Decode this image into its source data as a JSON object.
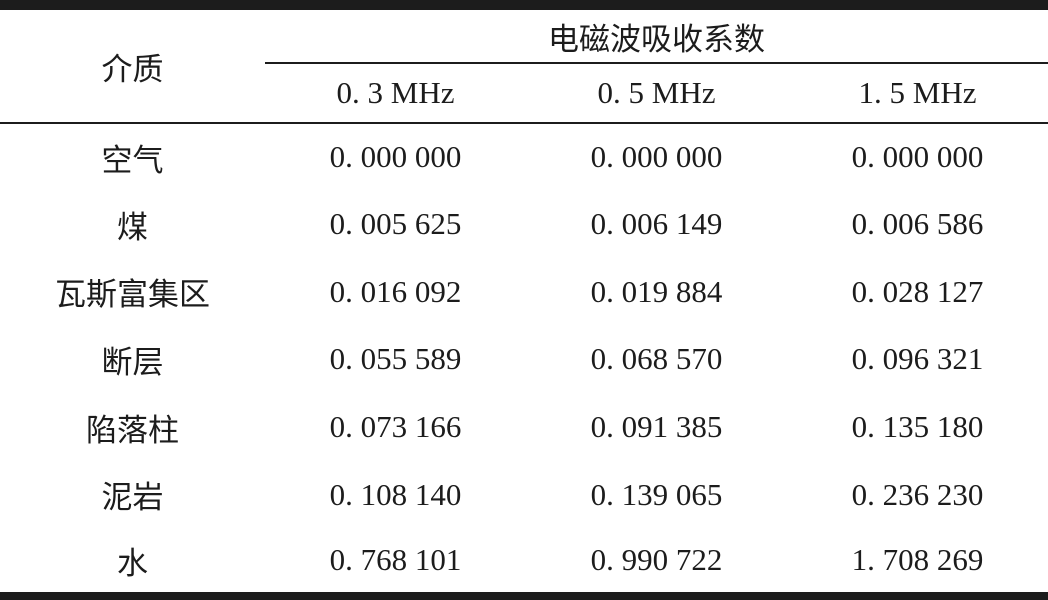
{
  "table": {
    "medium_header": "介质",
    "group_header": "电磁波吸收系数",
    "freq_headers": [
      "0. 3 MHz",
      "0. 5 MHz",
      "1. 5 MHz"
    ],
    "rows": [
      {
        "medium": "空气",
        "values": [
          "0. 000 000",
          "0. 000 000",
          "0. 000 000"
        ]
      },
      {
        "medium": "煤",
        "values": [
          "0. 005 625",
          "0. 006 149",
          "0. 006 586"
        ]
      },
      {
        "medium": "瓦斯富集区",
        "values": [
          "0. 016 092",
          "0. 019 884",
          "0. 028 127"
        ]
      },
      {
        "medium": "断层",
        "values": [
          "0. 055 589",
          "0. 068 570",
          "0. 096 321"
        ]
      },
      {
        "medium": "陷落柱",
        "values": [
          "0. 073 166",
          "0. 091 385",
          "0. 135 180"
        ]
      },
      {
        "medium": "泥岩",
        "values": [
          "0. 108 140",
          "0. 139 065",
          "0. 236 230"
        ]
      },
      {
        "medium": "水",
        "values": [
          "0. 768 101",
          "0. 990 722",
          "1. 708 269"
        ]
      }
    ],
    "colors": {
      "text": "#1c1c1c",
      "rule": "#1c1c1c",
      "background": "#ffffff"
    }
  }
}
